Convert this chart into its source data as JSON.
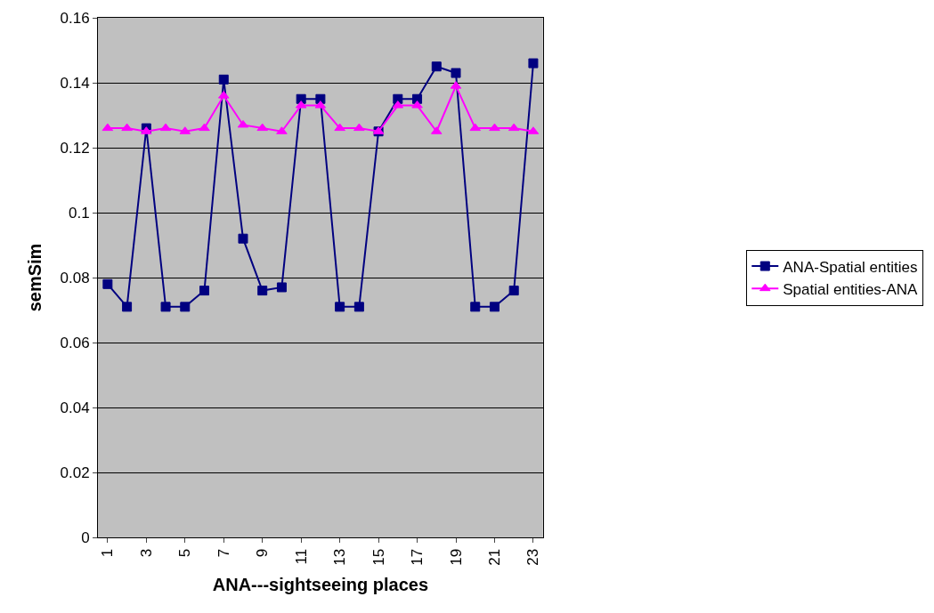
{
  "chart_data": {
    "type": "line",
    "xlabel": "ANA---sightseeing places",
    "ylabel": "semSim",
    "categories": [
      "1",
      null,
      "3",
      null,
      "5",
      null,
      "7",
      null,
      "9",
      null,
      "11",
      null,
      "13",
      null,
      "15",
      null,
      "17",
      null,
      "19",
      null,
      "21",
      null,
      "23"
    ],
    "series": [
      {
        "name": "ANA-Spatial entities",
        "color": "#000080",
        "marker": "square",
        "values": [
          0.078,
          0.071,
          0.126,
          0.071,
          0.071,
          0.076,
          0.141,
          0.092,
          0.076,
          0.077,
          0.135,
          0.135,
          0.071,
          0.071,
          0.125,
          0.135,
          0.135,
          0.145,
          0.143,
          0.071,
          0.071,
          0.076,
          0.146
        ]
      },
      {
        "name": "Spatial entities-ANA",
        "color": "#ff00ff",
        "marker": "triangle",
        "values": [
          0.126,
          0.126,
          0.125,
          0.126,
          0.125,
          0.126,
          0.136,
          0.127,
          0.126,
          0.125,
          0.133,
          0.133,
          0.126,
          0.126,
          0.125,
          0.133,
          0.133,
          0.125,
          0.139,
          0.126,
          0.126,
          0.126,
          0.125
        ]
      }
    ],
    "ylim": [
      0,
      0.16
    ],
    "yticks": [
      0,
      0.02,
      0.04,
      0.06,
      0.08,
      0.1,
      0.12,
      0.14,
      0.16
    ],
    "grid": "y",
    "legend": "right",
    "line_style": "solid"
  }
}
